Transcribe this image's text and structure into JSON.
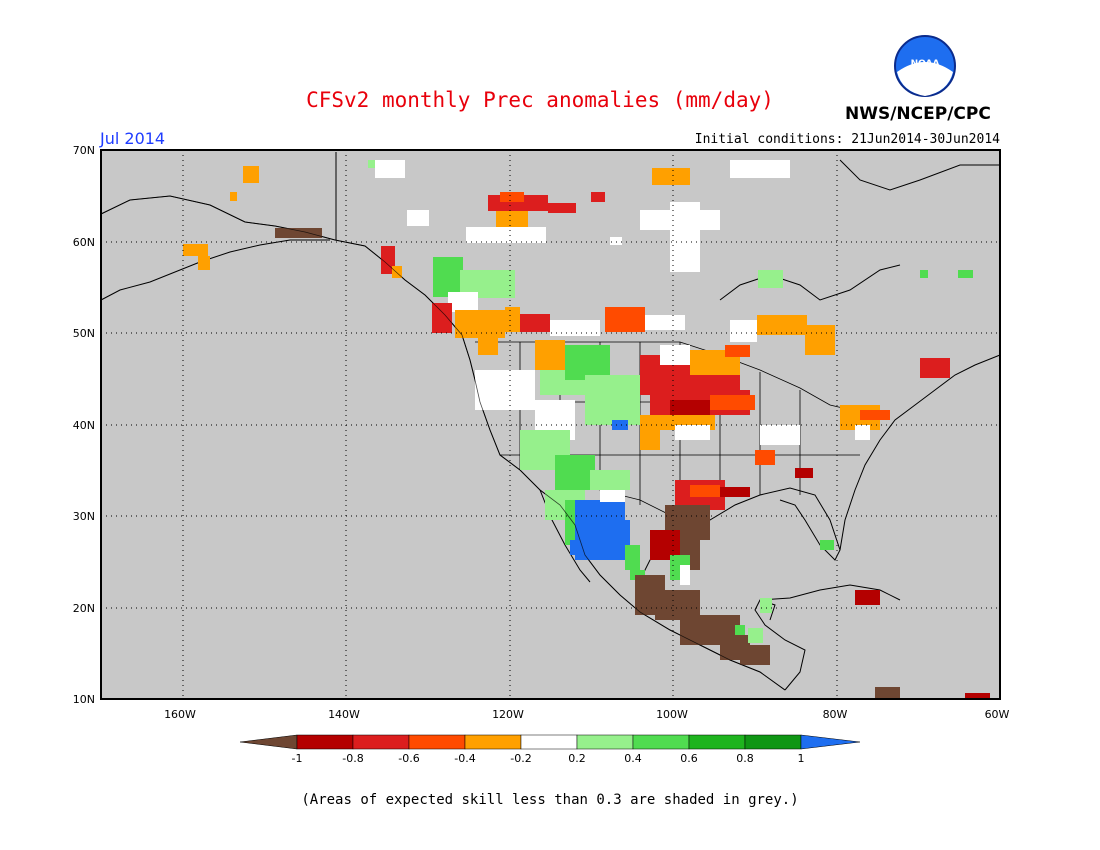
{
  "title": "CFSv2 monthly Prec anomalies (mm/day)",
  "agency": "NWS/NCEP/CPC",
  "logo_text": "NOAA",
  "period": "Jul 2014",
  "initial_conditions": "Initial conditions: 21Jun2014-30Jun2014",
  "note": "(Areas of expected skill less than 0.3 are shaded in grey.)",
  "map": {
    "lat_labels": [
      "70N",
      "60N",
      "50N",
      "40N",
      "30N",
      "20N",
      "10N"
    ],
    "lon_labels": [
      "160W",
      "140W",
      "120W",
      "100W",
      "80W",
      "60W"
    ],
    "background_color": "#c8c8c8"
  },
  "legend": {
    "colors": [
      "#6e4632",
      "#b40000",
      "#dc1e1e",
      "#ff4b00",
      "#ffa000",
      "#ffffff",
      "#96f08c",
      "#50dc50",
      "#1eb41e",
      "#0f9614",
      "#1e6ef0"
    ],
    "labels": [
      "-1",
      "-0.8",
      "-0.6",
      "-0.4",
      "-0.2",
      "0.2",
      "0.4",
      "0.6",
      "0.8",
      "1"
    ]
  }
}
